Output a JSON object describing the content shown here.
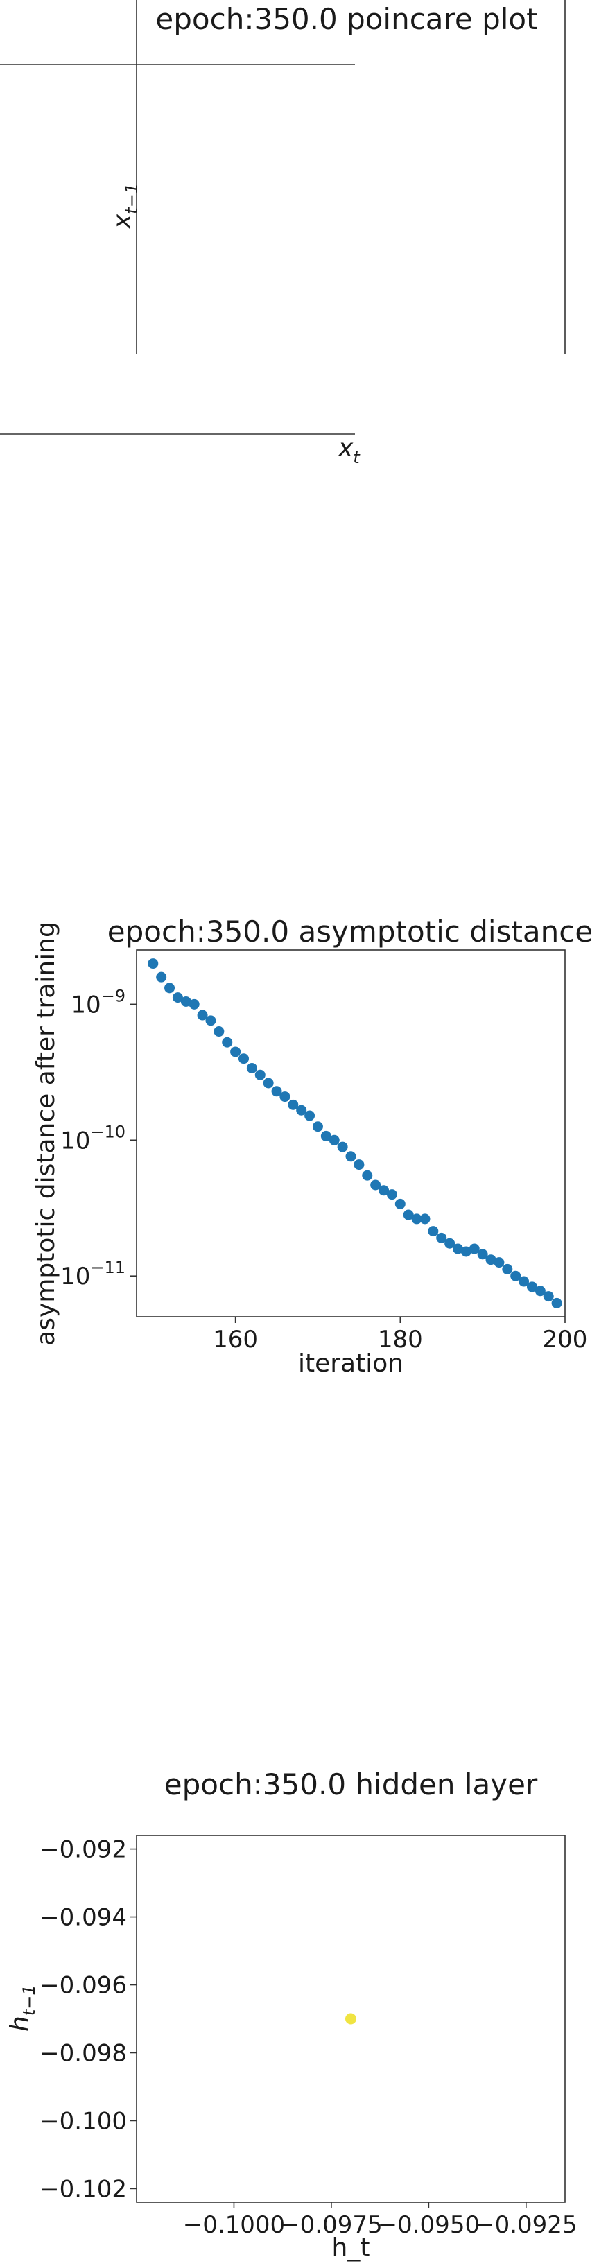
{
  "chart_data": [
    {
      "type": "line",
      "title": "epoch:350.0 poincare plot",
      "xlabel": "x_t",
      "xlabel_sub": "t",
      "ylabel": "x_{t-1}",
      "ylabel_sub": "t−1",
      "series": []
    },
    {
      "type": "scatter",
      "title": "epoch:350.0 asymptotic distance",
      "xlabel": "iteration",
      "ylabel": "asymptotic distance after training",
      "yscale": "log",
      "xlim": [
        148,
        200
      ],
      "ylim_exp": [
        -11.3,
        -8.6
      ],
      "xticks": [
        160,
        180,
        200
      ],
      "yticks_exp": [
        -9,
        -10,
        -11
      ],
      "color": "#1f77b4",
      "x": [
        150,
        151,
        152,
        153,
        154,
        155,
        156,
        157,
        158,
        159,
        160,
        161,
        162,
        163,
        164,
        165,
        166,
        167,
        168,
        169,
        170,
        171,
        172,
        173,
        174,
        175,
        176,
        177,
        178,
        179,
        180,
        181,
        182,
        183,
        184,
        185,
        186,
        187,
        188,
        189,
        190,
        191,
        192,
        193,
        194,
        195,
        196,
        197,
        198,
        199
      ],
      "log10_y": [
        -8.7,
        -8.8,
        -8.88,
        -8.95,
        -8.98,
        -9.0,
        -9.08,
        -9.12,
        -9.2,
        -9.28,
        -9.35,
        -9.4,
        -9.47,
        -9.52,
        -9.58,
        -9.64,
        -9.68,
        -9.74,
        -9.78,
        -9.82,
        -9.9,
        -9.97,
        -10.0,
        -10.05,
        -10.12,
        -10.18,
        -10.26,
        -10.33,
        -10.37,
        -10.4,
        -10.47,
        -10.55,
        -10.58,
        -10.58,
        -10.67,
        -10.72,
        -10.76,
        -10.8,
        -10.82,
        -10.8,
        -10.84,
        -10.88,
        -10.9,
        -10.95,
        -11.0,
        -11.04,
        -11.08,
        -11.11,
        -11.15,
        -11.2
      ]
    },
    {
      "type": "scatter",
      "title": "epoch:350.0 hidden layer",
      "xlabel": "h_t",
      "ylabel": "h_{t-1}",
      "ylabel_sub": "t−1",
      "xlim": [
        -0.1025,
        -0.0915
      ],
      "ylim": [
        -0.1024,
        -0.0916
      ],
      "xticks": [
        "−0.1000",
        "−0.0975",
        "−0.0950",
        "−0.0925"
      ],
      "xtick_values": [
        -0.1,
        -0.0975,
        -0.095,
        -0.0925
      ],
      "yticks": [
        "−0.092",
        "−0.094",
        "−0.096",
        "−0.098",
        "−0.100",
        "−0.102"
      ],
      "ytick_values": [
        -0.092,
        -0.094,
        -0.096,
        -0.098,
        -0.1,
        -0.102
      ],
      "color": "#f0e442",
      "points": [
        {
          "x": -0.097,
          "y": -0.097
        }
      ]
    }
  ]
}
